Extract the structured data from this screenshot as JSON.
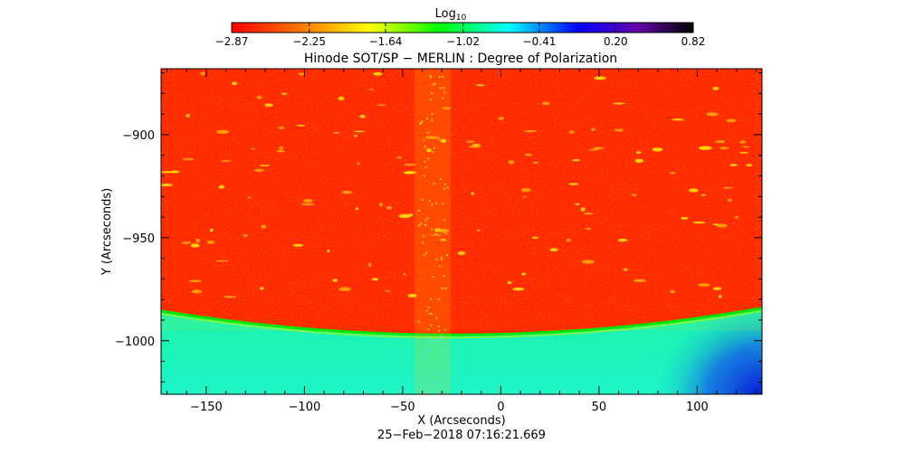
{
  "colorbar": {
    "label": "Log",
    "label_sub": "10",
    "ticks": [
      "−2.87",
      "−2.25",
      "−1.64",
      "−1.02",
      "−0.41",
      "0.20",
      "0.82"
    ],
    "tick_values": [
      -2.87,
      -2.25,
      -1.64,
      -1.02,
      -0.41,
      0.2,
      0.82
    ],
    "range": [
      -2.87,
      0.82
    ],
    "colormap": [
      "#ff0000",
      "#ff8800",
      "#ffff00",
      "#00ff00",
      "#00ffff",
      "#0000ff",
      "#6600aa",
      "#000000"
    ]
  },
  "plot": {
    "title": "Hinode SOT/SP − MERLIN : Degree of Polarization",
    "xlabel": "X (Arcseconds)",
    "ylabel": "Y (Arcseconds)",
    "timestamp": "25−Feb−2018 07:16:21.669",
    "x_ticks": [
      "−150",
      "−100",
      "−50",
      "0",
      "50",
      "100"
    ],
    "x_tick_values": [
      -150,
      -100,
      -50,
      0,
      50,
      100
    ],
    "y_ticks": [
      "−900",
      "−950",
      "−1000"
    ],
    "y_tick_values": [
      -900,
      -950,
      -1000
    ],
    "xlim": [
      -173,
      133
    ],
    "ylim": [
      -1026,
      -868
    ],
    "colors": {
      "disk": "#ff1e00",
      "limb": "#00e600",
      "offlimb": "#19f0a0",
      "dark_region": "#0a2adf",
      "bright_patch": "#fff200"
    }
  }
}
